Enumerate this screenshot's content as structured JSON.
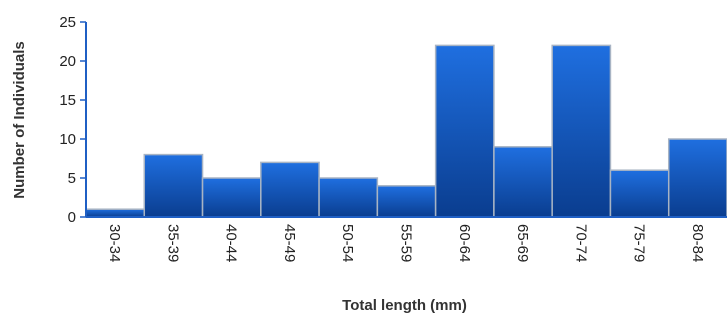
{
  "chart_data": {
    "type": "bar",
    "title": "",
    "xlabel": "Total length (mm)",
    "ylabel": "Number of Individuals",
    "categories": [
      "30-34",
      "35-39",
      "40-44",
      "45-49",
      "50-54",
      "55-59",
      "60-64",
      "65-69",
      "70-74",
      "75-79",
      "80-84"
    ],
    "values": [
      1,
      8,
      5,
      7,
      5,
      4,
      22,
      9,
      22,
      6,
      10
    ],
    "ylim": [
      0,
      25
    ],
    "yticks": [
      0,
      5,
      10,
      15,
      20,
      25
    ],
    "grid": false,
    "legend": "none",
    "colors": {
      "bar_top": "#1f6fe0",
      "bar_bottom": "#0a3d8f",
      "bar_edge": "#a8b4c4",
      "axis": "#1f5fc4"
    }
  }
}
